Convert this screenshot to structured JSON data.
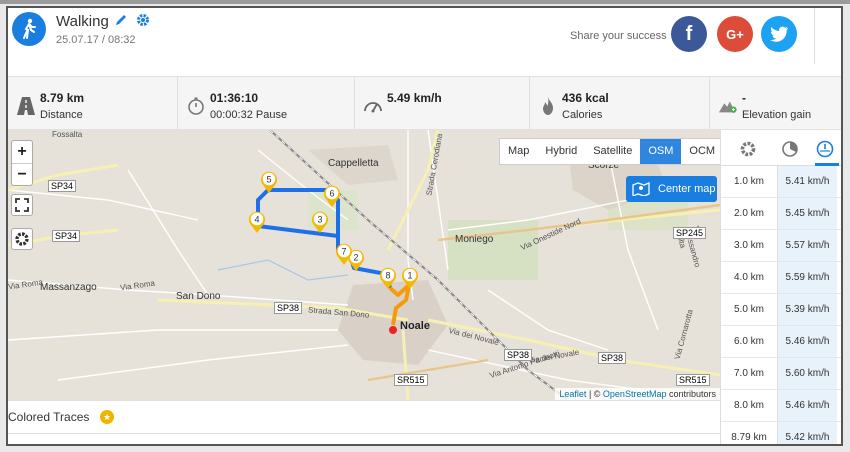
{
  "activity": {
    "title": "Walking",
    "date": "25.07.17 / 08:32"
  },
  "share": {
    "label": "Share your success",
    "facebook": "f",
    "google": "G+"
  },
  "stats": [
    {
      "icon": "road-icon",
      "value": "8.79 km",
      "label": "Distance"
    },
    {
      "icon": "stopwatch-icon",
      "value": "01:36:10",
      "label": "00:00:32 Pause"
    },
    {
      "icon": "speedometer-icon",
      "value": "5.49 km/h",
      "label": ""
    },
    {
      "icon": "flame-icon",
      "value": "436 kcal",
      "label": "Calories"
    },
    {
      "icon": "mountain-icon",
      "value": "-",
      "label": "Elevation gain"
    }
  ],
  "map": {
    "zoom_in": "+",
    "zoom_out": "−",
    "types": [
      "Map",
      "Hybrid",
      "Satellite",
      "OSM",
      "OCM"
    ],
    "active_type": "OSM",
    "center_btn": "Center map",
    "attribution_leaflet": "Leaflet",
    "attribution_sep": " | © ",
    "attribution_osm": "OpenStreetMap",
    "attribution_tail": " contributors",
    "place_labels": [
      "Cappelletta",
      "Scorzè",
      "Moniego",
      "Massanzago",
      "San Dono",
      "Noale",
      "Via Roma",
      "Via Roma",
      "Strada San Dono",
      "Via dei Novale",
      "Via dei Novale",
      "Strada Cerodiana",
      "Via Onestide Nord",
      "Via Alessandro Volta",
      "Via Cornarotta",
      "Via Antonio Pacinotti",
      "Fossalta"
    ],
    "road_labels": [
      "SP34",
      "SP34",
      "SP38",
      "SP38",
      "SP38",
      "SP245",
      "SR515",
      "SR515"
    ],
    "markers": [
      "1",
      "2",
      "3",
      "4",
      "5",
      "6",
      "7",
      "8"
    ]
  },
  "colored_traces": {
    "label": "Colored Traces",
    "star": "★"
  },
  "splits": [
    {
      "km": "1.0 km",
      "speed": "5.41 km/h"
    },
    {
      "km": "2.0 km",
      "speed": "5.45 km/h"
    },
    {
      "km": "3.0 km",
      "speed": "5.57 km/h"
    },
    {
      "km": "4.0 km",
      "speed": "5.59 km/h"
    },
    {
      "km": "5.0 km",
      "speed": "5.39 km/h"
    },
    {
      "km": "6.0 km",
      "speed": "5.46 km/h"
    },
    {
      "km": "7.0 km",
      "speed": "5.60 km/h"
    },
    {
      "km": "8.0 km",
      "speed": "5.46 km/h"
    },
    {
      "km": "8.79 km",
      "speed": "5.42 km/h"
    }
  ],
  "colors": {
    "accent": "#1a7ee0",
    "route": "#1e6fe8",
    "route_start": "#f59a0c",
    "facebook": "#3b5998",
    "google": "#dd4b39",
    "twitter": "#1da1f2"
  }
}
